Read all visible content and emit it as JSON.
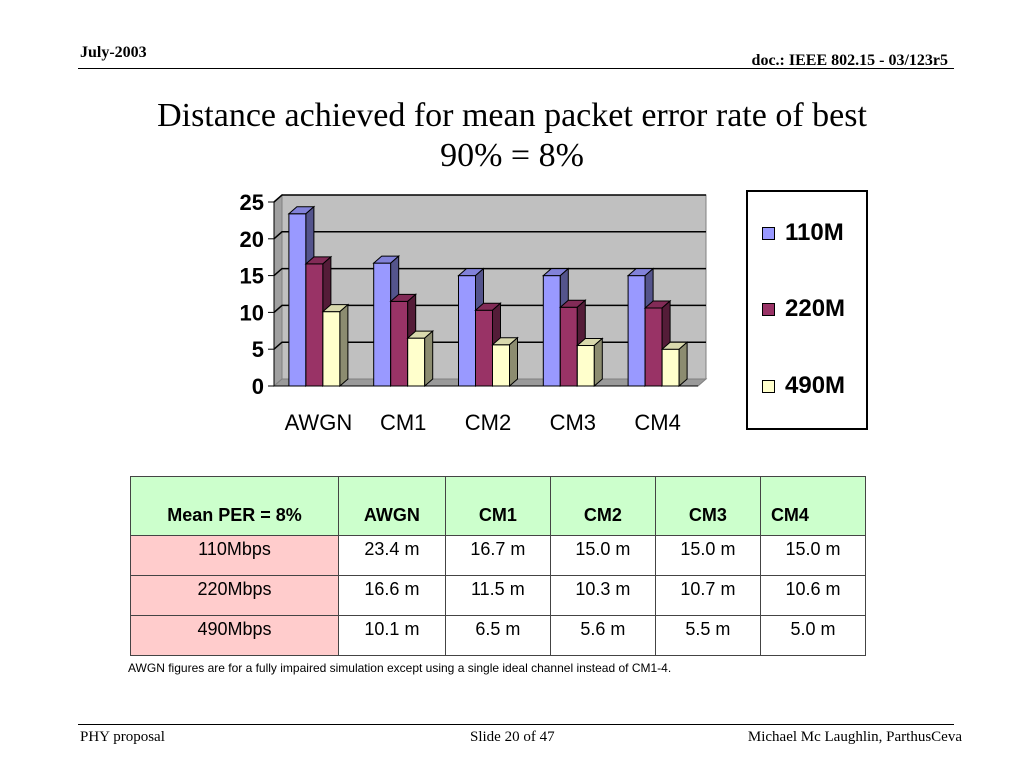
{
  "header": {
    "date": "July-2003",
    "doc": "doc.: IEEE 802.15 -  03/123r5"
  },
  "title_line1": "Distance achieved for mean packet error rate of best",
  "title_line2": "90% = 8%",
  "chart_data": {
    "type": "bar",
    "categories": [
      "AWGN",
      "CM1",
      "CM2",
      "CM3",
      "CM4"
    ],
    "series": [
      {
        "name": "110M",
        "values": [
          23.4,
          16.7,
          15.0,
          15.0,
          15.0
        ],
        "color": "#9999ff"
      },
      {
        "name": "220M",
        "values": [
          16.6,
          11.5,
          10.3,
          10.7,
          10.6
        ],
        "color": "#993366"
      },
      {
        "name": "490M",
        "values": [
          10.1,
          6.5,
          5.6,
          5.5,
          5.0
        ],
        "color": "#ffffcc"
      }
    ],
    "yticks": [
      "0",
      "5",
      "10",
      "15",
      "20",
      "25"
    ],
    "ylim": [
      0,
      25
    ],
    "grid": true,
    "legend": "right",
    "plot_background": "#c0c0c0"
  },
  "table": {
    "headers": [
      "Mean PER = 8%",
      "AWGN",
      "CM1",
      "CM2",
      "CM3",
      "CM4"
    ],
    "rows": [
      {
        "label": "110Mbps",
        "cells": [
          "23.4 m",
          "16.7 m",
          "15.0 m",
          "15.0 m",
          "15.0 m"
        ]
      },
      {
        "label": "220Mbps",
        "cells": [
          "16.6 m",
          "11.5 m",
          "10.3 m",
          "10.7 m",
          "10.6 m"
        ]
      },
      {
        "label": "490Mbps",
        "cells": [
          "10.1 m",
          "6.5 m",
          "5.6 m",
          "5.5 m",
          "5.0 m"
        ]
      }
    ]
  },
  "note": "AWGN figures are for a fully impaired simulation except using a single ideal channel instead of CM1-4.",
  "footer": {
    "left": "PHY proposal",
    "center": "Slide 20 of 47",
    "right": "Michael Mc Laughlin, ParthusCeva"
  }
}
